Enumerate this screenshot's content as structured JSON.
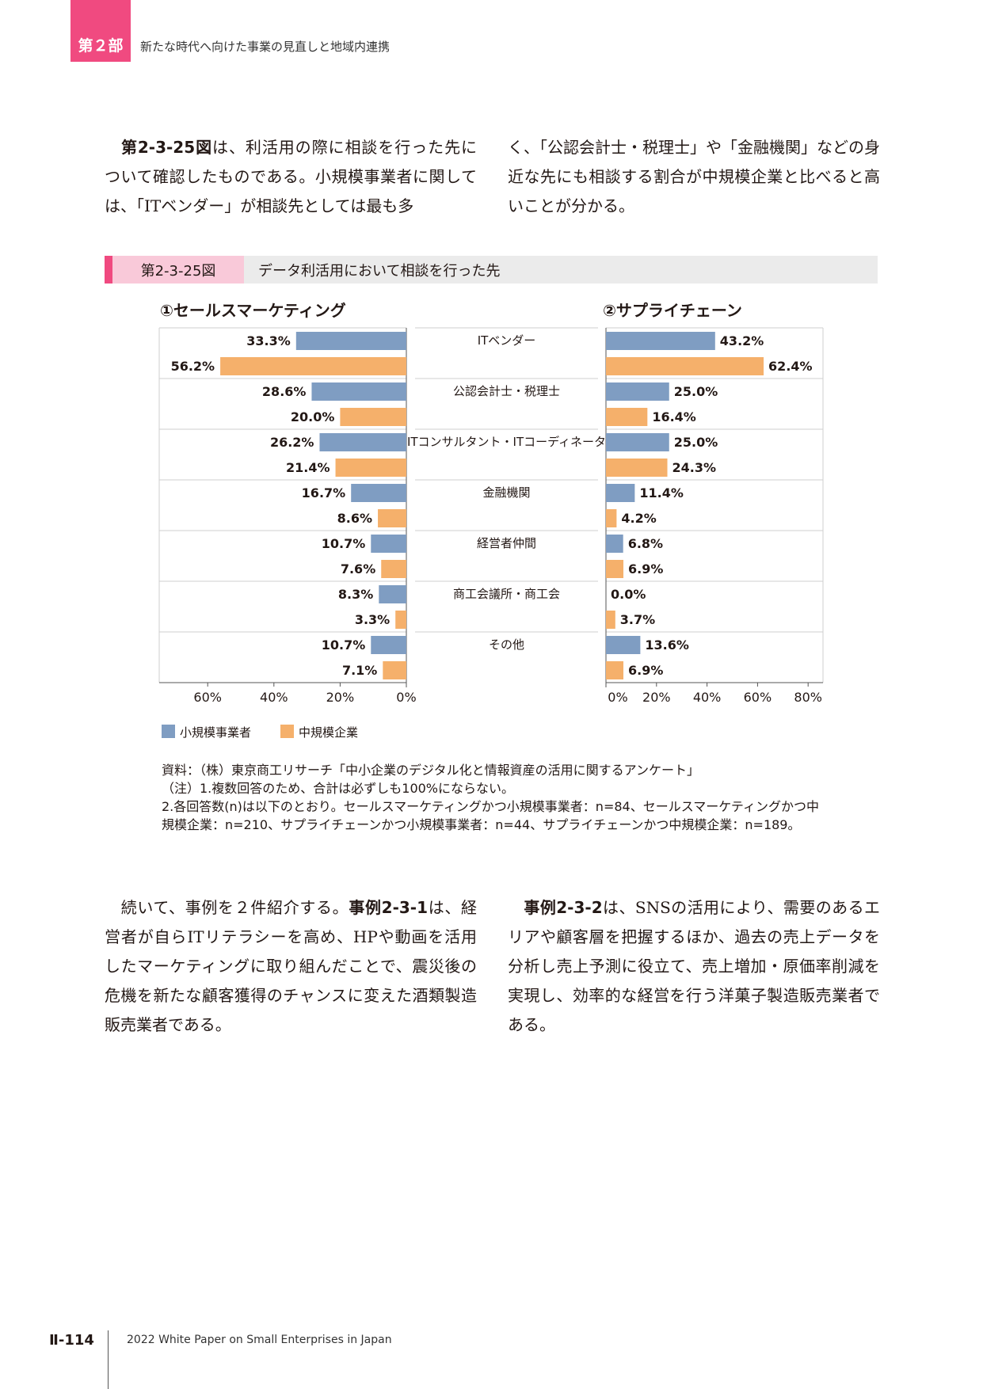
{
  "header": {
    "part_label": "第２部",
    "title": "新たな時代へ向けた事業の見直しと地域内連携"
  },
  "intro": {
    "left": {
      "ref": "第2-3-25図",
      "text": "は、利活用の際に相談を行った先について確認したものである。小規模事業者に関しては、「ITベンダー」が相談先としては最も多"
    },
    "right": {
      "text": "く、「公認会計士・税理士」や「金融機関」などの身近な先にも相談する割合が中規模企業と比べると高いことが分かる。"
    }
  },
  "figure": {
    "number": "第2-3-25図",
    "title": "データ利活用において相談を行った先",
    "panel_left_title": "①セールスマーケティング",
    "panel_right_title": "②サプライチェーン"
  },
  "chart_data": {
    "type": "bar",
    "orientation": "horizontal",
    "categories": [
      "ITベンダー",
      "公認会計士・税理士",
      "ITコンサルタント・ITコーディネータ",
      "金融機関",
      "経営者仲間",
      "商工会議所・商工会",
      "その他"
    ],
    "panels": [
      {
        "title": "①セールスマーケティング",
        "direction": "right-to-left",
        "xlim": [
          0,
          70
        ],
        "ticks": [
          "60%",
          "40%",
          "20%",
          "0%"
        ],
        "series": [
          {
            "name": "小規模事業者",
            "values": [
              33.3,
              28.6,
              26.2,
              16.7,
              10.7,
              8.3,
              10.7
            ],
            "labels": [
              "33.3%",
              "28.6%",
              "26.2%",
              "16.7%",
              "10.7%",
              "8.3%",
              "10.7%"
            ]
          },
          {
            "name": "中規模企業",
            "values": [
              56.2,
              20.0,
              21.4,
              8.6,
              7.6,
              3.3,
              7.1
            ],
            "labels": [
              "56.2%",
              "20.0%",
              "21.4%",
              "8.6%",
              "7.6%",
              "3.3%",
              "7.1%"
            ]
          }
        ]
      },
      {
        "title": "②サプライチェーン",
        "direction": "left-to-right",
        "xlim": [
          0,
          86
        ],
        "ticks": [
          "0%",
          "20%",
          "40%",
          "60%",
          "80%"
        ],
        "series": [
          {
            "name": "小規模事業者",
            "values": [
              43.2,
              25.0,
              25.0,
              11.4,
              6.8,
              0.0,
              13.6
            ],
            "labels": [
              "43.2%",
              "25.0%",
              "25.0%",
              "11.4%",
              "6.8%",
              "0.0%",
              "13.6%"
            ]
          },
          {
            "name": "中規模企業",
            "values": [
              62.4,
              16.4,
              24.3,
              4.2,
              6.9,
              3.7,
              6.9
            ],
            "labels": [
              "62.4%",
              "16.4%",
              "24.3%",
              "4.2%",
              "6.9%",
              "3.7%",
              "6.9%"
            ]
          }
        ]
      }
    ],
    "legend": [
      "小規模事業者",
      "中規模企業"
    ],
    "colors": {
      "small": "#7f9dc2",
      "medium": "#f5b06b"
    }
  },
  "notes": [
    "資料：（株）東京商工リサーチ「中小企業のデジタル化と情報資産の活用に関するアンケート」",
    "（注）1.複数回答のため、合計は必ずしも100%にならない。",
    "2.各回答数(n)は以下のとおり。セールスマーケティングかつ小規模事業者：n=84、セールスマーケティングかつ中",
    "規模企業：n=210、サプライチェーンかつ小規模事業者：n=44、サプライチェーンかつ中規模企業：n=189。"
  ],
  "outro": {
    "left": {
      "pre": "続いて、事例を２件紹介する。",
      "ref": "事例2-3-1",
      "post": "は、経営者が自らITリテラシーを高め、HPや動画を活用したマーケティングに取り組んだことで、震災後の危機を新たな顧客獲得のチャンスに変えた酒類製造販売業者である。"
    },
    "right": {
      "ref": "事例2-3-2",
      "post": "は、SNSの活用により、需要のあるエリアや顧客層を把握するほか、過去の売上データを分析し売上予測に役立て、売上増加・原価率削減を実現し、効率的な経営を行う洋菓子製造販売業者である。"
    }
  },
  "footer": {
    "page_number": "Ⅱ-114",
    "publication": "2022 White Paper on Small Enterprises in Japan"
  }
}
